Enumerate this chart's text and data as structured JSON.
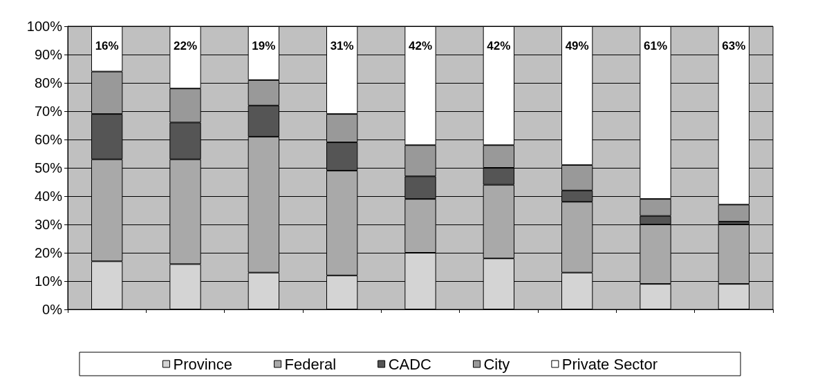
{
  "chart_data": {
    "type": "bar",
    "stacked": true,
    "categories": [
      null,
      null,
      null,
      null,
      null,
      null,
      null,
      null,
      null
    ],
    "series": [
      {
        "name": "Province",
        "color": "#d4d4d4",
        "values": [
          17,
          16,
          13,
          12,
          20,
          18,
          13,
          9,
          9
        ]
      },
      {
        "name": "Federal",
        "color": "#a9a9a9",
        "values": [
          36,
          37,
          48,
          37,
          19,
          26,
          25,
          21,
          21
        ]
      },
      {
        "name": "CADC",
        "color": "#555555",
        "values": [
          16,
          13,
          11,
          10,
          8,
          6,
          4,
          3,
          1
        ]
      },
      {
        "name": "City",
        "color": "#999999",
        "values": [
          15,
          12,
          9,
          10,
          11,
          8,
          9,
          6,
          6
        ]
      },
      {
        "name": "Private Sector",
        "color": "#ffffff",
        "values": [
          16,
          22,
          19,
          31,
          42,
          42,
          49,
          61,
          63
        ],
        "value_labels": [
          "16%",
          "22%",
          "19%",
          "31%",
          "42%",
          "42%",
          "49%",
          "61%",
          "63%"
        ]
      }
    ],
    "ylim": [
      0,
      100
    ],
    "yticks": [
      {
        "value": 0,
        "label": "0%"
      },
      {
        "value": 10,
        "label": "10%"
      },
      {
        "value": 20,
        "label": "20%"
      },
      {
        "value": 30,
        "label": "30%"
      },
      {
        "value": 40,
        "label": "40%"
      },
      {
        "value": 50,
        "label": "50%"
      },
      {
        "value": 60,
        "label": "60%"
      },
      {
        "value": 70,
        "label": "70%"
      },
      {
        "value": 80,
        "label": "80%"
      },
      {
        "value": 90,
        "label": "90%"
      },
      {
        "value": 100,
        "label": "100%"
      }
    ],
    "grid": "y",
    "legend": "bottom"
  }
}
